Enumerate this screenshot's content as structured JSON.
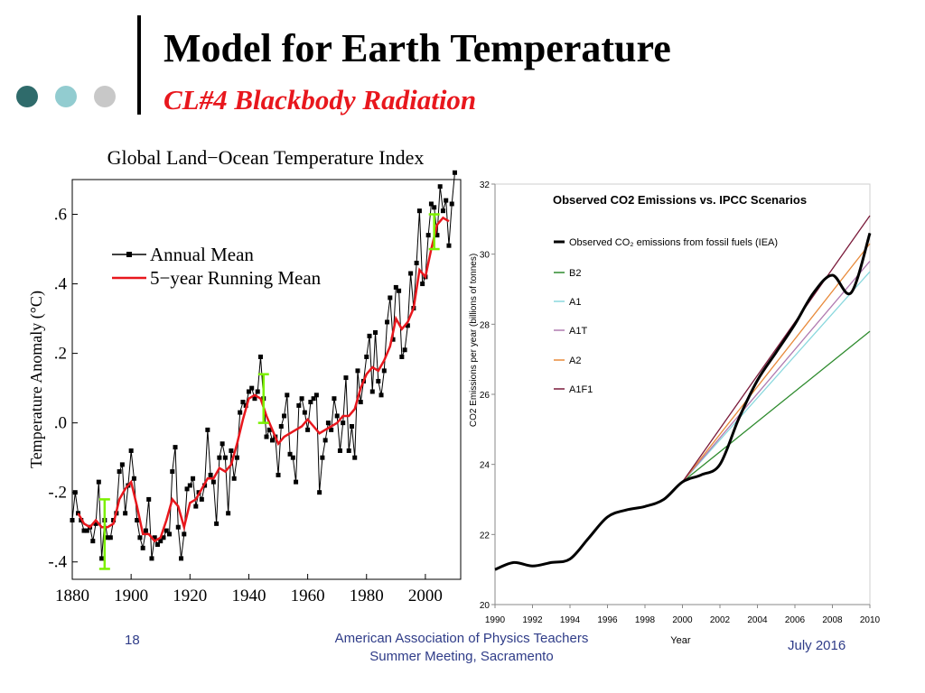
{
  "slide": {
    "title": "Model for Earth Temperature",
    "subtitle": "CL#4 Blackbody Radiation",
    "dot_colors": [
      "#2f6b6b",
      "#92ccd0",
      "#c8c8c8"
    ]
  },
  "footer": {
    "slide_number": "18",
    "organization_line1": "American Association of Physics Teachers",
    "organization_line2": "Summer Meeting, Sacramento",
    "date": "July 2016"
  },
  "chart_data": [
    {
      "type": "line",
      "title": "Global Land−Ocean Temperature Index",
      "xlabel": "",
      "ylabel": "Temperature Anomaly (°C)",
      "xlim": [
        1880,
        2012
      ],
      "ylim": [
        -0.45,
        0.7
      ],
      "x_ticks": [
        1880,
        1900,
        1920,
        1940,
        1960,
        1980,
        2000
      ],
      "y_ticks": [
        {
          "value": 0.6,
          "label": ".6"
        },
        {
          "value": 0.4,
          "label": ".4"
        },
        {
          "value": 0.2,
          "label": ".2"
        },
        {
          "value": 0.0,
          "label": ".0"
        },
        {
          "value": -0.2,
          "label": "-.2"
        },
        {
          "value": -0.4,
          "label": "-.4"
        }
      ],
      "legend": {
        "position": "top-left",
        "annual_label": "Annual Mean",
        "running_label": "5−year Running Mean"
      },
      "series": [
        {
          "name": "Annual Mean",
          "color": "#000000",
          "x": [
            1880,
            1881,
            1882,
            1883,
            1884,
            1885,
            1886,
            1887,
            1888,
            1889,
            1890,
            1891,
            1892,
            1893,
            1894,
            1895,
            1896,
            1897,
            1898,
            1899,
            1900,
            1901,
            1902,
            1903,
            1904,
            1905,
            1906,
            1907,
            1908,
            1909,
            1910,
            1911,
            1912,
            1913,
            1914,
            1915,
            1916,
            1917,
            1918,
            1919,
            1920,
            1921,
            1922,
            1923,
            1924,
            1925,
            1926,
            1927,
            1928,
            1929,
            1930,
            1931,
            1932,
            1933,
            1934,
            1935,
            1936,
            1937,
            1938,
            1939,
            1940,
            1941,
            1942,
            1943,
            1944,
            1945,
            1946,
            1947,
            1948,
            1949,
            1950,
            1951,
            1952,
            1953,
            1954,
            1955,
            1956,
            1957,
            1958,
            1959,
            1960,
            1961,
            1962,
            1963,
            1964,
            1965,
            1966,
            1967,
            1968,
            1969,
            1970,
            1971,
            1972,
            1973,
            1974,
            1975,
            1976,
            1977,
            1978,
            1979,
            1980,
            1981,
            1982,
            1983,
            1984,
            1985,
            1986,
            1987,
            1988,
            1989,
            1990,
            1991,
            1992,
            1993,
            1994,
            1995,
            1996,
            1997,
            1998,
            1999,
            2000,
            2001,
            2002,
            2003,
            2004,
            2005,
            2006,
            2007,
            2008,
            2009,
            2010
          ],
          "values": [
            -0.28,
            -0.2,
            -0.26,
            -0.28,
            -0.31,
            -0.31,
            -0.3,
            -0.34,
            -0.29,
            -0.17,
            -0.39,
            -0.28,
            -0.33,
            -0.33,
            -0.28,
            -0.26,
            -0.14,
            -0.12,
            -0.26,
            -0.18,
            -0.08,
            -0.16,
            -0.28,
            -0.33,
            -0.36,
            -0.31,
            -0.22,
            -0.39,
            -0.33,
            -0.35,
            -0.34,
            -0.33,
            -0.31,
            -0.32,
            -0.14,
            -0.07,
            -0.3,
            -0.39,
            -0.32,
            -0.19,
            -0.18,
            -0.16,
            -0.24,
            -0.2,
            -0.22,
            -0.18,
            -0.02,
            -0.15,
            -0.17,
            -0.29,
            -0.1,
            -0.06,
            -0.1,
            -0.26,
            -0.08,
            -0.16,
            -0.1,
            0.03,
            0.06,
            0.05,
            0.09,
            0.1,
            0.07,
            0.09,
            0.19,
            0.07,
            -0.04,
            -0.02,
            -0.05,
            -0.04,
            -0.15,
            -0.01,
            0.02,
            0.08,
            -0.09,
            -0.1,
            -0.17,
            0.05,
            0.07,
            0.03,
            -0.02,
            0.06,
            0.07,
            0.08,
            -0.2,
            -0.1,
            -0.05,
            0.0,
            -0.02,
            0.07,
            0.02,
            -0.08,
            0.0,
            0.13,
            -0.08,
            -0.01,
            -0.1,
            0.15,
            0.06,
            0.12,
            0.19,
            0.25,
            0.09,
            0.26,
            0.12,
            0.08,
            0.15,
            0.29,
            0.36,
            0.24,
            0.39,
            0.38,
            0.19,
            0.21,
            0.28,
            0.43,
            0.33,
            0.46,
            0.61,
            0.4,
            0.42,
            0.54,
            0.63,
            0.62,
            0.54,
            0.68,
            0.61,
            0.64,
            0.51,
            0.63,
            0.72
          ]
        },
        {
          "name": "5-year Running Mean",
          "color": "#e8171d",
          "x": [
            1882,
            1884,
            1886,
            1888,
            1890,
            1892,
            1894,
            1896,
            1898,
            1900,
            1902,
            1904,
            1906,
            1908,
            1910,
            1912,
            1914,
            1916,
            1918,
            1920,
            1922,
            1924,
            1926,
            1928,
            1930,
            1932,
            1934,
            1936,
            1938,
            1940,
            1942,
            1944,
            1946,
            1948,
            1950,
            1952,
            1954,
            1956,
            1958,
            1960,
            1962,
            1964,
            1966,
            1968,
            1970,
            1972,
            1974,
            1976,
            1978,
            1980,
            1982,
            1984,
            1986,
            1988,
            1990,
            1992,
            1994,
            1996,
            1998,
            2000,
            2002,
            2004,
            2006,
            2008
          ],
          "values": [
            -0.26,
            -0.29,
            -0.3,
            -0.28,
            -0.3,
            -0.3,
            -0.29,
            -0.22,
            -0.19,
            -0.17,
            -0.24,
            -0.32,
            -0.32,
            -0.34,
            -0.33,
            -0.28,
            -0.22,
            -0.24,
            -0.3,
            -0.23,
            -0.22,
            -0.19,
            -0.16,
            -0.16,
            -0.13,
            -0.14,
            -0.12,
            -0.06,
            0.01,
            0.07,
            0.08,
            0.07,
            0.02,
            -0.02,
            -0.06,
            -0.04,
            -0.03,
            -0.02,
            -0.01,
            0.01,
            -0.01,
            -0.03,
            -0.02,
            -0.01,
            0.0,
            0.02,
            0.02,
            0.04,
            0.1,
            0.14,
            0.16,
            0.15,
            0.18,
            0.22,
            0.3,
            0.27,
            0.29,
            0.33,
            0.44,
            0.42,
            0.5,
            0.57,
            0.59,
            0.58
          ]
        },
        {
          "name": "Uncertainty bars",
          "color": "#7cf000",
          "x": [
            1891,
            1945,
            2003
          ],
          "lower": [
            -0.42,
            0.0,
            0.5
          ],
          "upper": [
            -0.22,
            0.14,
            0.6
          ]
        }
      ]
    },
    {
      "type": "line",
      "title": "Observed CO2 Emissions vs. IPCC Scenarios",
      "xlabel": "Year",
      "ylabel": "CO2 Emissions per year (billions of tonnes)",
      "xlim": [
        1990,
        2010
      ],
      "ylim": [
        20,
        32
      ],
      "x_ticks": [
        1990,
        1992,
        1994,
        1996,
        1998,
        2000,
        2002,
        2004,
        2006,
        2008,
        2010
      ],
      "y_ticks": [
        20,
        22,
        24,
        26,
        28,
        30,
        32
      ],
      "legend": {
        "position": "top-left"
      },
      "series": [
        {
          "name": "Observed CO₂ emissions from fossil fuels (IEA)",
          "color": "#000000",
          "x": [
            1990,
            1991,
            1992,
            1993,
            1994,
            1995,
            1996,
            1997,
            1998,
            1999,
            2000,
            2001,
            2002,
            2003,
            2004,
            2005,
            2006,
            2007,
            2008,
            2009,
            2010
          ],
          "values": [
            21.0,
            21.2,
            21.1,
            21.2,
            21.3,
            21.9,
            22.5,
            22.7,
            22.8,
            23.0,
            23.5,
            23.7,
            24.0,
            25.3,
            26.4,
            27.2,
            28.0,
            28.9,
            29.4,
            28.9,
            30.6
          ]
        },
        {
          "name": "B2",
          "color": "#2e8b2e",
          "x": [
            2000,
            2010
          ],
          "values": [
            23.5,
            27.8
          ]
        },
        {
          "name": "A1",
          "color": "#8ad8de",
          "x": [
            2000,
            2010
          ],
          "values": [
            23.5,
            29.5
          ]
        },
        {
          "name": "A1T",
          "color": "#b07ab0",
          "x": [
            2000,
            2010
          ],
          "values": [
            23.5,
            29.8
          ]
        },
        {
          "name": "A2",
          "color": "#e88a3a",
          "x": [
            2000,
            2010
          ],
          "values": [
            23.5,
            30.3
          ]
        },
        {
          "name": "A1F1",
          "color": "#7a1a3a",
          "x": [
            2000,
            2010
          ],
          "values": [
            23.5,
            31.1
          ]
        }
      ]
    }
  ]
}
